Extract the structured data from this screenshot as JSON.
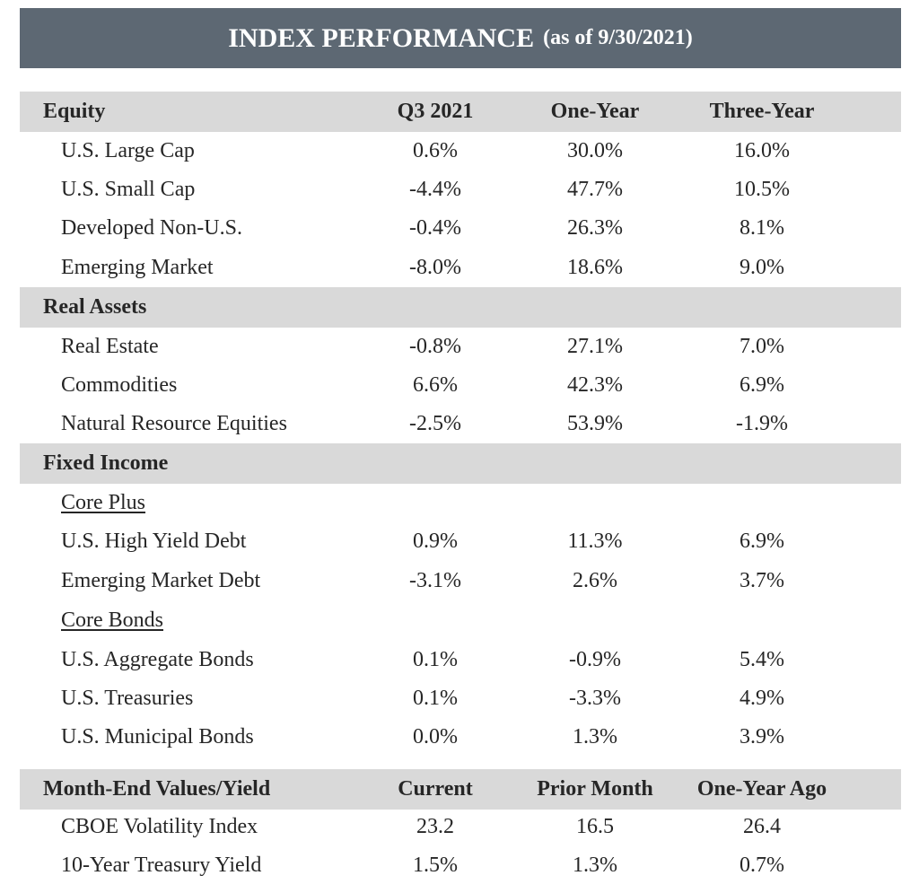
{
  "title": "INDEX PERFORMANCE",
  "subtitle": "(as of 9/30/2021)",
  "equity_header": [
    "Equity",
    "Q3 2021",
    "One-Year",
    "Three-Year"
  ],
  "equity_rows": [
    [
      "U.S. Large Cap",
      "0.6%",
      "30.0%",
      "16.0%"
    ],
    [
      "U.S. Small Cap",
      "-4.4%",
      "47.7%",
      "10.5%"
    ],
    [
      "Developed Non-U.S.",
      "-0.4%",
      "26.3%",
      "8.1%"
    ],
    [
      "Emerging Market",
      "-8.0%",
      "18.6%",
      "9.0%"
    ]
  ],
  "real_assets_header": "Real Assets",
  "real_assets_rows": [
    [
      "Real Estate",
      "-0.8%",
      "27.1%",
      "7.0%"
    ],
    [
      "Commodities",
      "6.6%",
      "42.3%",
      "6.9%"
    ],
    [
      "Natural Resource Equities",
      "-2.5%",
      "53.9%",
      "-1.9%"
    ]
  ],
  "fixed_income_header": "Fixed Income",
  "core_plus_label": "Core Plus",
  "core_plus_rows": [
    [
      "U.S. High Yield Debt",
      "0.9%",
      "11.3%",
      "6.9%"
    ],
    [
      "Emerging Market Debt",
      "-3.1%",
      "2.6%",
      "3.7%"
    ]
  ],
  "core_bonds_label": "Core Bonds",
  "core_bonds_rows": [
    [
      "U.S. Aggregate Bonds",
      "0.1%",
      "-0.9%",
      "5.4%"
    ],
    [
      "U.S. Treasuries",
      "0.1%",
      "-3.3%",
      "4.9%"
    ],
    [
      "U.S. Municipal Bonds",
      "0.0%",
      "1.3%",
      "3.9%"
    ]
  ],
  "month_end_header": [
    "Month-End Values/Yield",
    "Current",
    "Prior Month",
    "One-Year Ago"
  ],
  "month_end_rows": [
    [
      "CBOE Volatility Index",
      "23.2",
      "16.5",
      "26.4"
    ],
    [
      "10-Year Treasury Yield",
      "1.5%",
      "1.3%",
      "0.7%"
    ]
  ]
}
